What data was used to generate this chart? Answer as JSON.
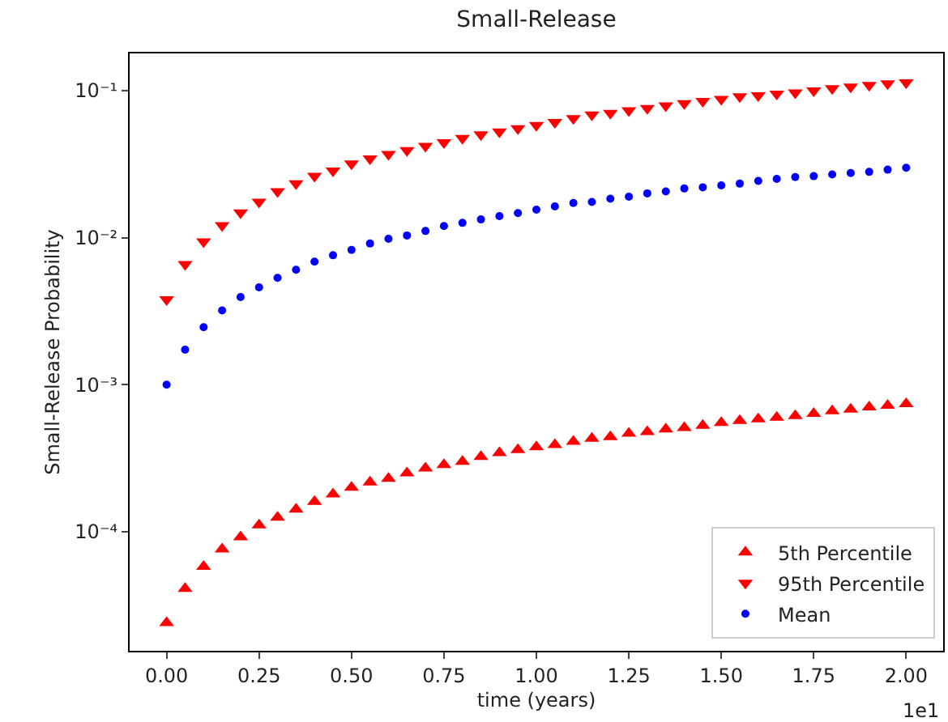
{
  "chart_data": {
    "type": "scatter",
    "title": "Small-Release",
    "xlabel": "time (years)",
    "ylabel": "Small-Release Probability",
    "x": [
      0,
      0.05,
      0.1,
      0.15,
      0.2,
      0.25,
      0.3,
      0.35,
      0.4,
      0.45,
      0.5,
      0.55,
      0.6,
      0.65,
      0.7,
      0.75,
      0.8,
      0.85,
      0.9,
      0.95,
      1.0,
      1.05,
      1.1,
      1.15,
      1.2,
      1.25,
      1.3,
      1.35,
      1.4,
      1.45,
      1.5,
      1.55,
      1.6,
      1.65,
      1.7,
      1.75,
      1.8,
      1.85,
      1.9,
      1.95,
      2.0
    ],
    "series": [
      {
        "name": "5th Percentile",
        "color": "#ff0000",
        "marker": "triangle-up",
        "values": [
          2.4e-05,
          4.1e-05,
          5.8e-05,
          7.6e-05,
          9.2e-05,
          0.000111,
          0.000125,
          0.000142,
          0.00016,
          0.00018,
          0.0002,
          0.000217,
          0.00023,
          0.00025,
          0.00027,
          0.000285,
          0.0003,
          0.000324,
          0.000344,
          0.000361,
          0.000377,
          0.00039,
          0.00041,
          0.000431,
          0.000442,
          0.000466,
          0.000478,
          0.000498,
          0.00051,
          0.000528,
          0.000551,
          0.000569,
          0.000583,
          0.000598,
          0.000614,
          0.000635,
          0.000662,
          0.000679,
          0.000703,
          0.000721,
          0.000739
        ]
      },
      {
        "name": "95th Percentile",
        "color": "#ff0000",
        "marker": "triangle-down",
        "values": [
          0.0038,
          0.0066,
          0.0094,
          0.0121,
          0.0148,
          0.0175,
          0.0206,
          0.0233,
          0.0262,
          0.0285,
          0.0318,
          0.0345,
          0.0369,
          0.0392,
          0.0419,
          0.0444,
          0.0474,
          0.0503,
          0.0525,
          0.0552,
          0.0581,
          0.061,
          0.0647,
          0.0686,
          0.0703,
          0.0733,
          0.0759,
          0.0791,
          0.0818,
          0.0846,
          0.0875,
          0.0912,
          0.0927,
          0.0951,
          0.0967,
          0.1,
          0.1035,
          0.106,
          0.1087,
          0.1115,
          0.1135
        ]
      },
      {
        "name": "Mean",
        "color": "#0000ff",
        "marker": "circle",
        "values": [
          0.001,
          0.00173,
          0.00246,
          0.0032,
          0.00394,
          0.00459,
          0.00533,
          0.00605,
          0.00686,
          0.00759,
          0.00825,
          0.00912,
          0.00983,
          0.01035,
          0.0111,
          0.012,
          0.0126,
          0.0133,
          0.014,
          0.0147,
          0.0155,
          0.0163,
          0.0172,
          0.0175,
          0.0184,
          0.019,
          0.02,
          0.0206,
          0.0216,
          0.022,
          0.0227,
          0.0233,
          0.0243,
          0.0251,
          0.0258,
          0.0262,
          0.0269,
          0.0275,
          0.028,
          0.029,
          0.0299
        ]
      }
    ],
    "log": "y",
    "legend": "bottom right",
    "xlim": [
      -0.1,
      2.1
    ],
    "xticks": [
      {
        "value": 0,
        "label": "0.00"
      },
      {
        "value": 0.25,
        "label": "0.25"
      },
      {
        "value": 0.5,
        "label": "0.50"
      },
      {
        "value": 0.75,
        "label": "0.75"
      },
      {
        "value": 1.0,
        "label": "1.00"
      },
      {
        "value": 1.25,
        "label": "1.25"
      },
      {
        "value": 1.5,
        "label": "1.50"
      },
      {
        "value": 1.75,
        "label": "1.75"
      },
      {
        "value": 2.0,
        "label": "2.00"
      }
    ],
    "ylim": [
      1.55e-05,
      0.179
    ],
    "yticks": [
      {
        "value": 0.1,
        "label": "10⁻¹"
      },
      {
        "value": 0.01,
        "label": "10⁻²"
      },
      {
        "value": 0.001,
        "label": "10⁻³"
      },
      {
        "value": 0.0001,
        "label": "10⁻⁴"
      }
    ],
    "annotations": [
      "1e1"
    ]
  }
}
